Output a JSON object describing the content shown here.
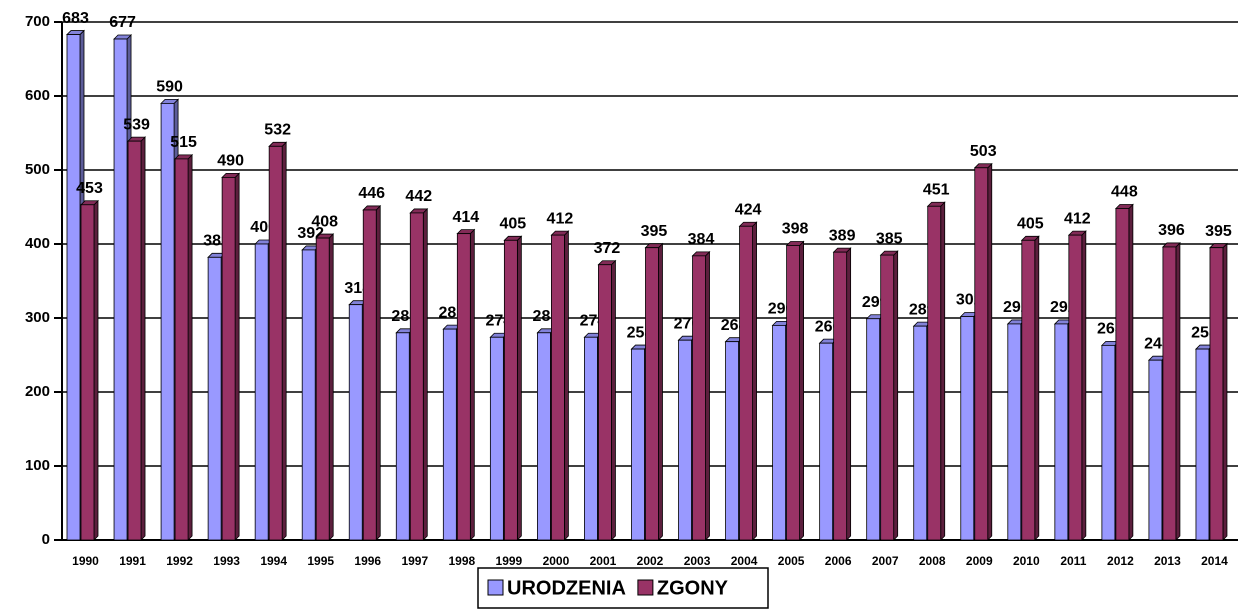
{
  "chart_data": {
    "type": "bar",
    "categories": [
      "1990",
      "1991",
      "1992",
      "1993",
      "1994",
      "1995",
      "1996",
      "1997",
      "1998",
      "1999",
      "2000",
      "2001",
      "2002",
      "2003",
      "2004",
      "2005",
      "2006",
      "2007",
      "2008",
      "2009",
      "2010",
      "2011",
      "2012",
      "2013",
      "2014"
    ],
    "series": [
      {
        "name": "URODZENIA",
        "color": "#9999ff",
        "values": [
          683,
          677,
          590,
          382,
          400,
          392,
          318,
          280,
          285,
          274,
          280,
          274,
          258,
          270,
          268,
          290,
          266,
          299,
          289,
          302,
          292,
          292,
          263,
          243,
          258
        ]
      },
      {
        "name": "ZGONY",
        "color": "#993366",
        "values": [
          453,
          539,
          515,
          490,
          532,
          408,
          446,
          442,
          414,
          405,
          412,
          372,
          395,
          384,
          424,
          398,
          389,
          385,
          451,
          503,
          405,
          412,
          448,
          396,
          395
        ]
      }
    ],
    "ylim": [
      0,
      700
    ],
    "yticks": [
      0,
      100,
      200,
      300,
      400,
      500,
      600,
      700
    ],
    "grid": true,
    "legend": "bottom"
  }
}
